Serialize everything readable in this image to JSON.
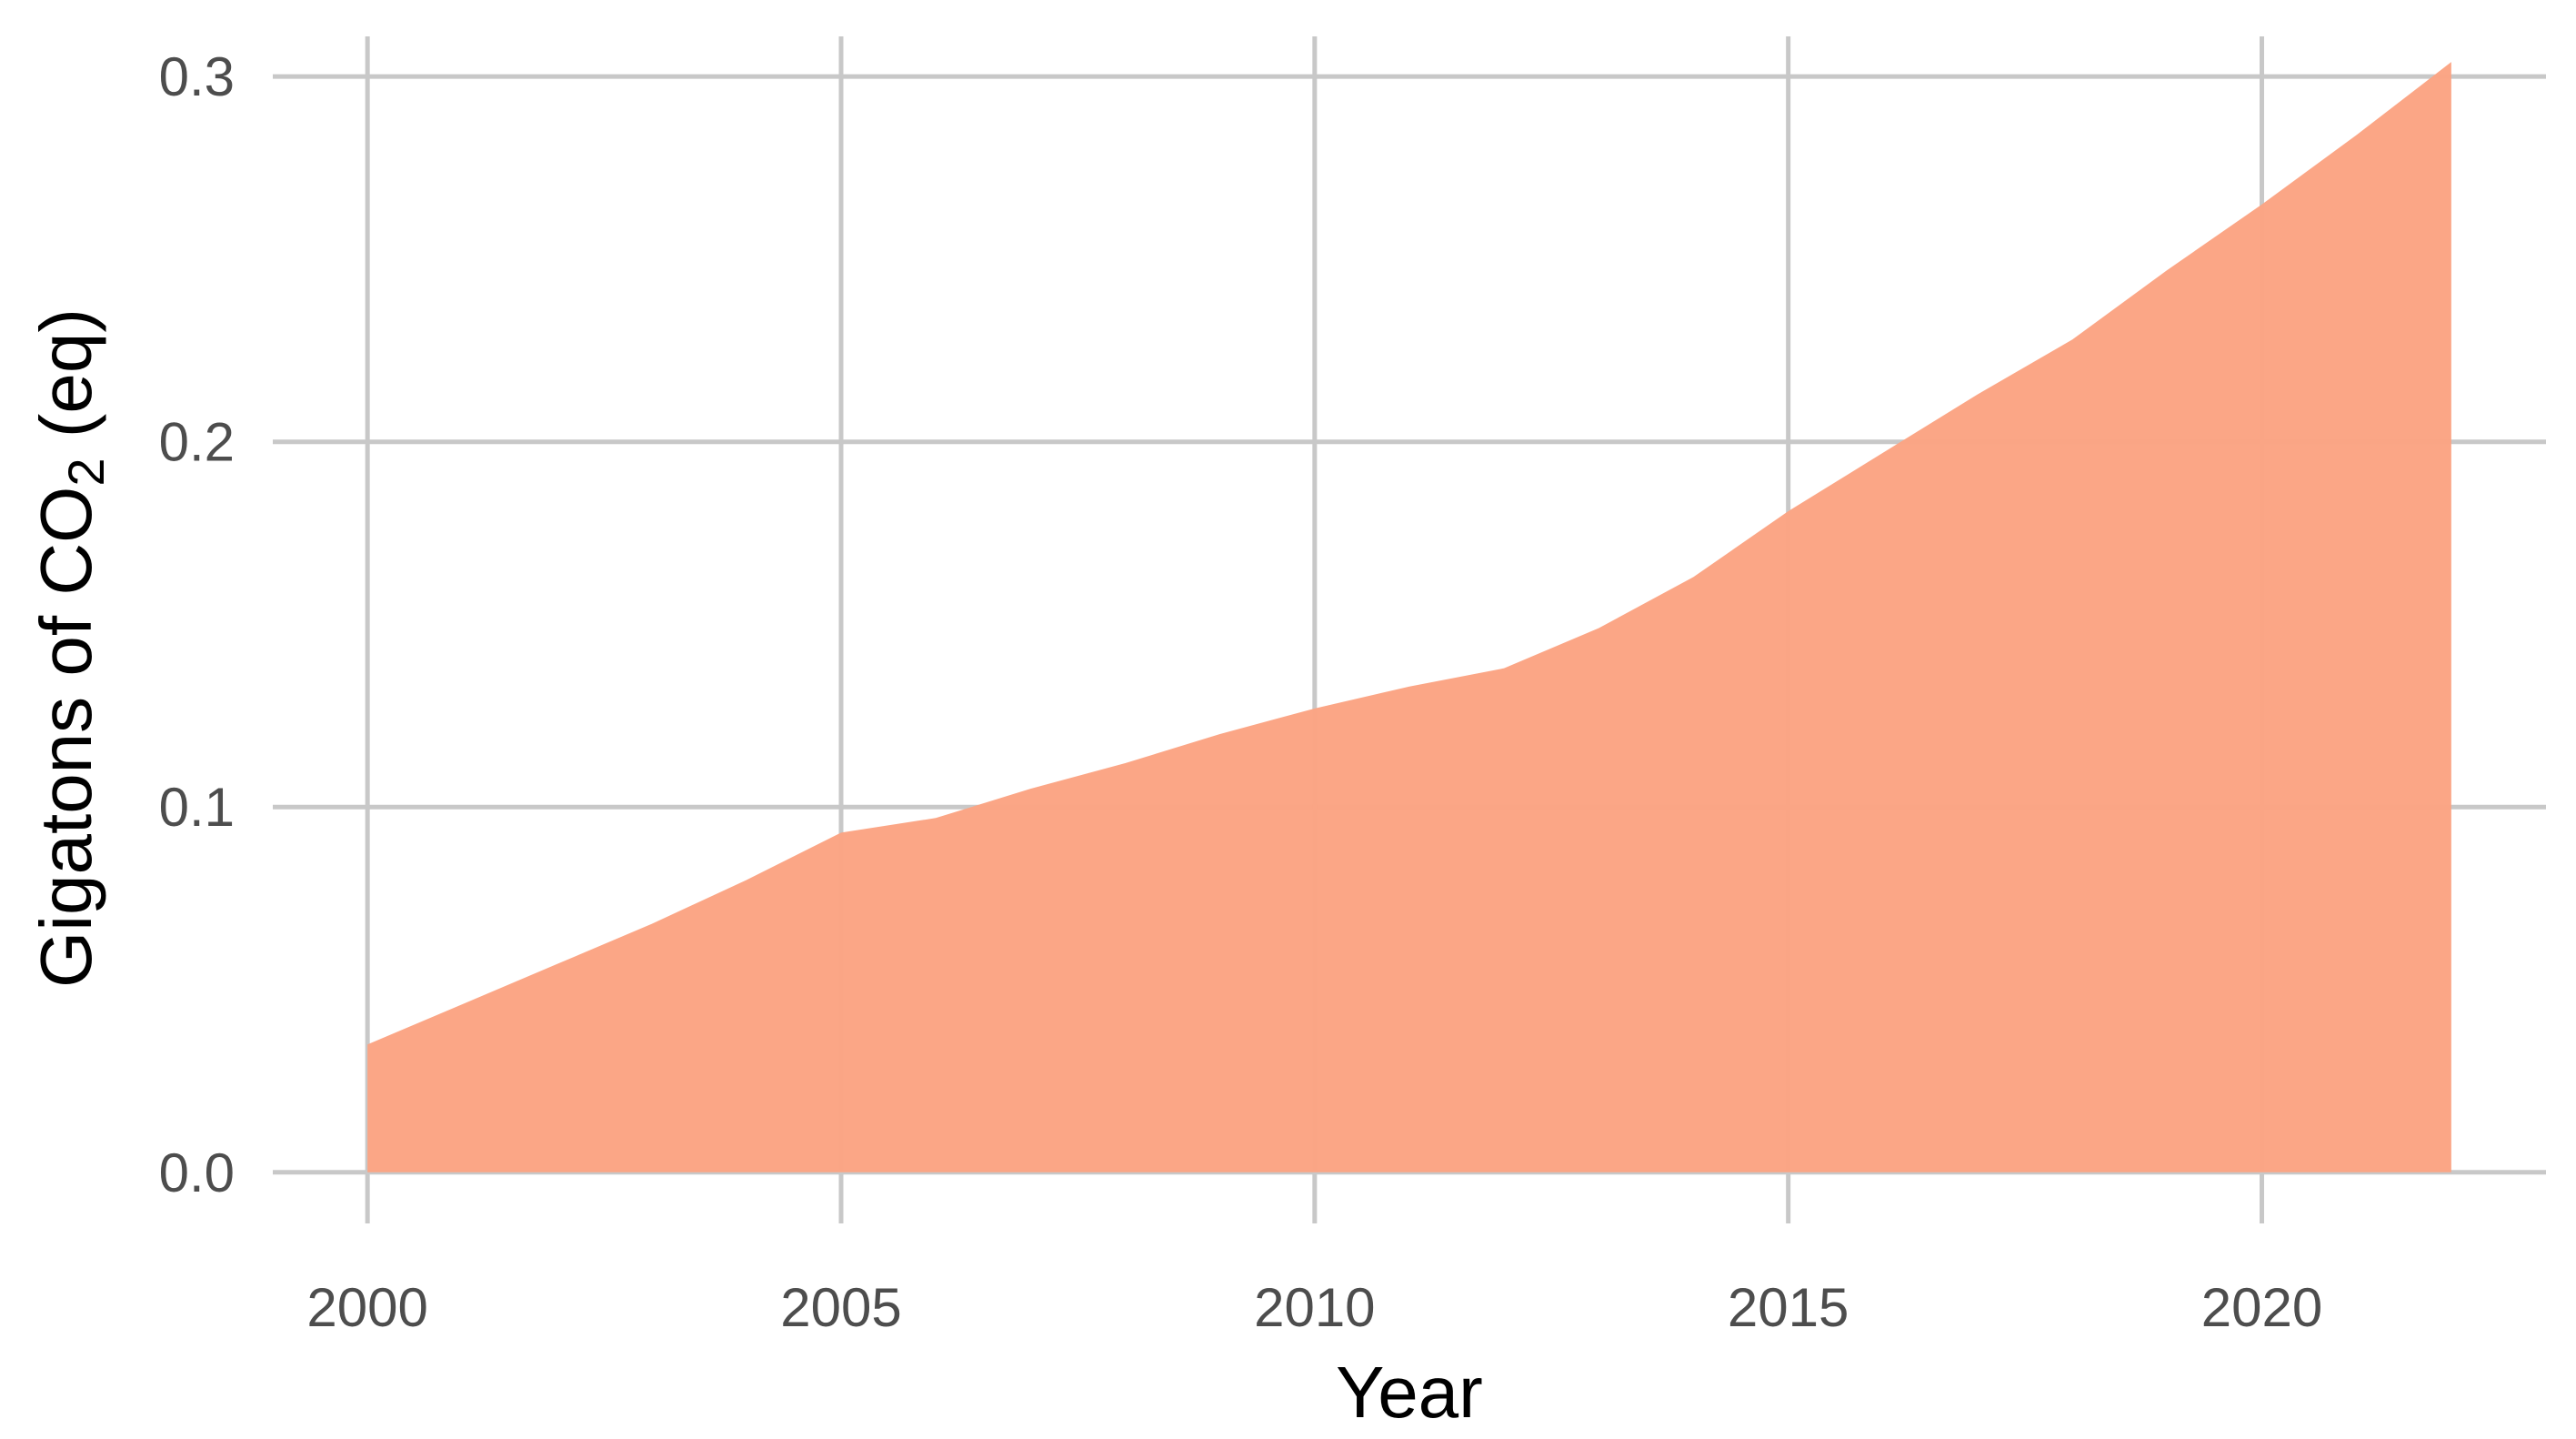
{
  "chart_data": {
    "type": "area",
    "title": "",
    "xlabel": "Year",
    "ylabel": {
      "prefix": "Gigatons of CO",
      "subscript": "2",
      "suffix": " (eq)"
    },
    "xlim": [
      1999,
      2023
    ],
    "ylim": [
      -0.014,
      0.311
    ],
    "x_ticks": [
      2000,
      2005,
      2010,
      2015,
      2020
    ],
    "x_tick_labels": [
      "2000",
      "2005",
      "2010",
      "2015",
      "2020"
    ],
    "y_ticks": [
      0.0,
      0.1,
      0.2,
      0.3
    ],
    "y_tick_labels": [
      "0.0",
      "0.1",
      "0.2",
      "0.3"
    ],
    "grid": true,
    "legend": "none",
    "fill_color": "#fba382",
    "series": [
      {
        "x": [
          2000,
          2001,
          2002,
          2003,
          2004,
          2005,
          2006,
          2007,
          2008,
          2009,
          2010,
          2011,
          2012,
          2013,
          2014,
          2015,
          2016,
          2017,
          2018,
          2019,
          2020,
          2021,
          2022
        ],
        "values": [
          0.035,
          0.046,
          0.057,
          0.068,
          0.08,
          0.093,
          0.097,
          0.105,
          0.112,
          0.12,
          0.127,
          0.133,
          0.138,
          0.149,
          0.163,
          0.181,
          0.197,
          0.213,
          0.228,
          0.247,
          0.265,
          0.284,
          0.304
        ]
      }
    ]
  }
}
